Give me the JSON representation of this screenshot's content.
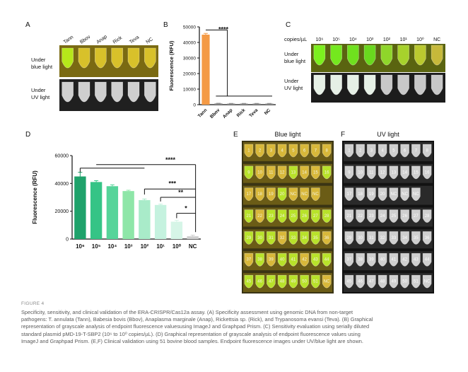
{
  "panels": {
    "a": "A",
    "b": "B",
    "c": "C",
    "d": "D",
    "e": "E",
    "f": "F"
  },
  "panel_a": {
    "headers": [
      "Tann",
      "Bbov",
      "Anap",
      "Rick",
      "Teva",
      "NC"
    ],
    "rows": [
      "Under",
      "blue light",
      "Under",
      "UV light"
    ]
  },
  "panel_c": {
    "copies_label": "copies/µL",
    "headers": [
      "10⁶",
      "10⁵",
      "10⁴",
      "10³",
      "10²",
      "10¹",
      "10⁰",
      "NC"
    ],
    "rows": [
      "Under",
      "blue light",
      "Under",
      "UV light"
    ]
  },
  "panel_e": {
    "title": "Blue light",
    "tubes": [
      [
        "1",
        "2",
        "3",
        "4",
        "5",
        "6",
        "7",
        "8"
      ],
      [
        "9",
        "10",
        "11",
        "12",
        "13",
        "14",
        "15",
        "16"
      ],
      [
        "17",
        "18",
        "19",
        "20",
        "NC",
        "NC",
        "NC"
      ],
      [
        "21",
        "22",
        "23",
        "24",
        "25",
        "26",
        "27",
        "28"
      ],
      [
        "29",
        "30",
        "31",
        "32",
        "33",
        "34",
        "35",
        "36"
      ],
      [
        "37",
        "38",
        "39",
        "40",
        "41",
        "42",
        "43",
        "44"
      ],
      [
        "45",
        "46",
        "47",
        "48",
        "49",
        "50",
        "51",
        "NC"
      ]
    ],
    "positive": [
      "9",
      "13",
      "16",
      "20",
      "21",
      "23",
      "24",
      "25",
      "26",
      "27",
      "28",
      "29",
      "30",
      "31",
      "33",
      "34",
      "35",
      "38",
      "40",
      "41",
      "43",
      "44",
      "45",
      "46",
      "47",
      "48",
      "49",
      "50",
      "51"
    ]
  },
  "panel_f": {
    "title": "UV light",
    "tubes": [
      [
        "1",
        "2",
        "3",
        "4",
        "5",
        "6",
        "7",
        "8"
      ],
      [
        "9",
        "10",
        "11",
        "12",
        "13",
        "14",
        "15",
        "16"
      ],
      [
        "17",
        "18",
        "19",
        "20",
        "NC",
        "NC",
        "NC"
      ],
      [
        "21",
        "22",
        "23",
        "24",
        "25",
        "26",
        "27",
        "28"
      ],
      [
        "29",
        "30",
        "31",
        "32",
        "33",
        "34",
        "35",
        "36"
      ],
      [
        "37",
        "38",
        "39",
        "40",
        "41",
        "42",
        "43",
        "44"
      ],
      [
        "45",
        "46",
        "47",
        "48",
        "49",
        "50",
        "51",
        "NC"
      ]
    ]
  },
  "chart_data": [
    {
      "id": "B",
      "type": "bar",
      "categories": [
        "Tann",
        "Bbov",
        "Anap",
        "Rick",
        "Teva",
        "NC"
      ],
      "values": [
        45000,
        800,
        700,
        700,
        700,
        700
      ],
      "errors": [
        800,
        100,
        100,
        100,
        100,
        100
      ],
      "colors": [
        "#f49a45",
        "#8c8c8c",
        "#8c8c8c",
        "#8c8c8c",
        "#8c8c8c",
        "#8c8c8c"
      ],
      "ylabel": "Fluorescence (RFU)",
      "yticks": [
        "0",
        "10000",
        "20000",
        "30000",
        "40000",
        "50000"
      ],
      "ylim": [
        0,
        50000
      ],
      "significance": "****"
    },
    {
      "id": "D",
      "type": "bar",
      "categories": [
        "10⁶",
        "10⁵",
        "10⁴",
        "10³",
        "10²",
        "10¹",
        "10⁰",
        "NC"
      ],
      "values": [
        45000,
        41000,
        38000,
        34500,
        28000,
        24500,
        12500,
        2000
      ],
      "errors": [
        3000,
        1000,
        1000,
        600,
        800,
        600,
        1000,
        800
      ],
      "colors": [
        "#1fa26b",
        "#35c486",
        "#56d49a",
        "#8ee6a8",
        "#a9ebc9",
        "#c5f2df",
        "#d6f5e7",
        "#cfcfcf"
      ],
      "ylabel": "Fluorescence (RFU)",
      "yticks": [
        "0",
        "20000",
        "40000",
        "60000"
      ],
      "ylim": [
        0,
        60000
      ],
      "significance": [
        "****",
        "***",
        "**",
        "*"
      ]
    }
  ],
  "caption": {
    "figure_label": "FIGURE 4",
    "lines": [
      "Specificity, sensitivity, and clinical validation of the ERA-CRISPR/Cas12a assay. (A) Specificity assessment using genomic DNA from non-target",
      "pathogens: T. annulata (Tann), Babesia bovis (Bbov), Anaplasma marginale (Anap), Rickettsia sp. (Rick), and Trypanosoma evansi (Teva). (B) Graphical",
      "representation of grayscale analysis of endpoint fluorescence valuesusing ImageJ and Graphpad Prism. (C) Sensitivity evaluation using serially diluted",
      "standard plasmid pMD-19-T-SBP2 (10⁶ to 10⁰ copies/µL). (D) Graphical representation of grayscale analysis of endpoint fluorescence values using",
      "ImageJ and Graphpad Prism. (E,F) Clinical validation using 51 bovine blood samples. Endpoint fluorescence images under UV/blue light are shown."
    ]
  }
}
